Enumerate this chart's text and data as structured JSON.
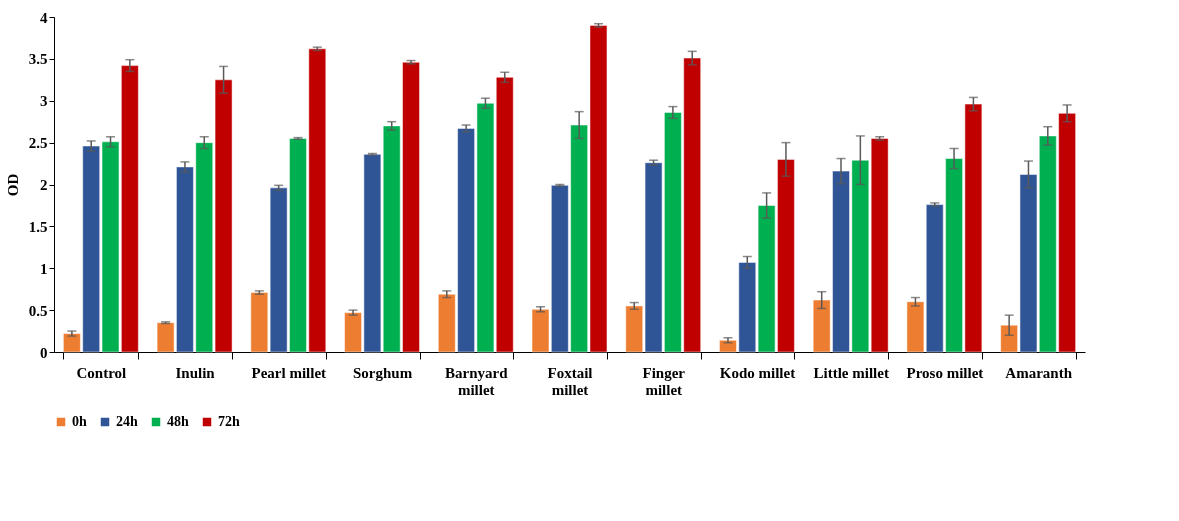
{
  "chart_data": {
    "type": "bar",
    "ylabel": "OD",
    "categories": [
      "Control",
      "Inulin",
      "Pearl millet",
      "Sorghum",
      "Barnyard\nmillet",
      "Foxtail\nmillet",
      "Finger\nmillet",
      "Kodo millet",
      "Little millet",
      "Proso millet",
      "Amaranth"
    ],
    "series": [
      {
        "name": "0h",
        "color": "#ed7d31",
        "values": [
          0.22,
          0.35,
          0.71,
          0.47,
          0.69,
          0.51,
          0.55,
          0.14,
          0.62,
          0.6,
          0.32
        ],
        "errors": [
          0.03,
          0.01,
          0.02,
          0.03,
          0.04,
          0.03,
          0.04,
          0.03,
          0.1,
          0.05,
          0.12
        ]
      },
      {
        "name": "24h",
        "color": "#2f5597",
        "values": [
          2.46,
          2.21,
          1.96,
          2.36,
          2.67,
          1.99,
          2.26,
          1.07,
          2.16,
          1.76,
          2.12
        ],
        "errors": [
          0.06,
          0.06,
          0.03,
          0.01,
          0.04,
          0.01,
          0.03,
          0.07,
          0.15,
          0.02,
          0.16
        ]
      },
      {
        "name": "48h",
        "color": "#00b050",
        "values": [
          2.51,
          2.5,
          2.55,
          2.7,
          2.97,
          2.71,
          2.86,
          1.75,
          2.29,
          2.31,
          2.58
        ],
        "errors": [
          0.06,
          0.07,
          0.01,
          0.05,
          0.06,
          0.16,
          0.07,
          0.15,
          0.29,
          0.12,
          0.11
        ]
      },
      {
        "name": "72h",
        "color": "#c00000",
        "values": [
          3.42,
          3.25,
          3.62,
          3.46,
          3.28,
          3.9,
          3.51,
          2.3,
          2.55,
          2.96,
          2.85
        ],
        "errors": [
          0.07,
          0.16,
          0.02,
          0.02,
          0.06,
          0.02,
          0.08,
          0.2,
          0.02,
          0.08,
          0.1
        ]
      }
    ],
    "ylim": [
      0,
      4
    ],
    "yticks": [
      0,
      0.5,
      1,
      1.5,
      2,
      2.5,
      3,
      3.5,
      4
    ],
    "grid": false,
    "legend": "bottom"
  }
}
